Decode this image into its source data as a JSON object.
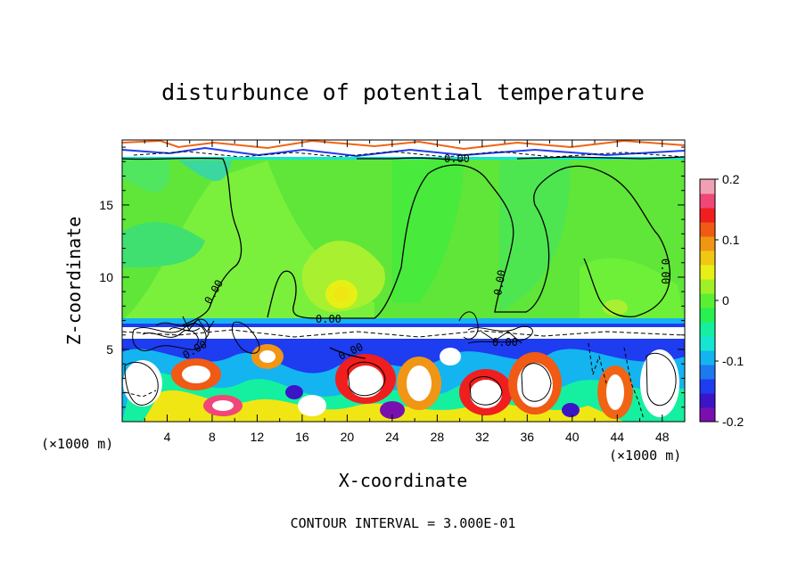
{
  "chart_data": {
    "type": "heatmap",
    "title": "disturbunce of potential temperature",
    "xlabel": "X-coordinate",
    "ylabel": "Z-coordinate",
    "x_unit": "(×1000 m)",
    "z_unit": "(×1000 m)",
    "footnote": "CONTOUR INTERVAL = 3.000E-01",
    "xlim": [
      0,
      50
    ],
    "zlim": [
      0,
      19.5
    ],
    "x_ticks": [
      4,
      8,
      12,
      16,
      20,
      24,
      28,
      32,
      36,
      40,
      44,
      48
    ],
    "z_ticks": [
      5,
      10,
      15
    ],
    "colorbar": {
      "range": [
        -0.2,
        0.2
      ],
      "tick_labels": [
        "0.2",
        "0.1",
        "0",
        "-0.1",
        "-0.2"
      ],
      "tick_values": [
        0.2,
        0.1,
        0,
        -0.1,
        -0.2
      ],
      "colors": [
        "#7a0fb0",
        "#3c14c8",
        "#1e3cf0",
        "#1e78f0",
        "#14b4f0",
        "#14e6d2",
        "#14f0a0",
        "#28f050",
        "#5af032",
        "#a0f028",
        "#e6f014",
        "#f0c814",
        "#f09614",
        "#f05a14",
        "#f01e1e",
        "#f04678",
        "#f0a0b4"
      ]
    },
    "contour_labels": [
      "0.00",
      "0.00",
      "0.00",
      "0.00",
      "0.00",
      "0.00",
      "0.00",
      "0.00"
    ]
  }
}
